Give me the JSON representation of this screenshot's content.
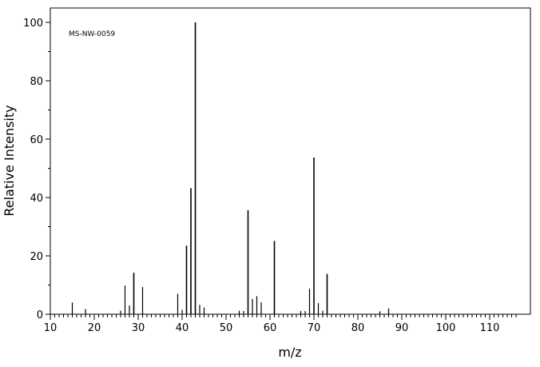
{
  "chart_data": {
    "type": "bar",
    "annotation": "MS-NW-0059",
    "xlabel": "m/z",
    "ylabel": "Relative Intensity",
    "xlim": [
      10,
      118
    ],
    "ylim": [
      0,
      100
    ],
    "x_ticks_major": [
      10,
      20,
      30,
      40,
      50,
      60,
      70,
      80,
      90,
      100,
      110
    ],
    "y_ticks_major": [
      0,
      20,
      40,
      60,
      80,
      100
    ],
    "grid": false,
    "legend": "none",
    "peaks": [
      {
        "mz": 15,
        "intensity": 4
      },
      {
        "mz": 18,
        "intensity": 1.8
      },
      {
        "mz": 26,
        "intensity": 1.2
      },
      {
        "mz": 27,
        "intensity": 9.8
      },
      {
        "mz": 28,
        "intensity": 3
      },
      {
        "mz": 29,
        "intensity": 14.2
      },
      {
        "mz": 31,
        "intensity": 9.3
      },
      {
        "mz": 39,
        "intensity": 7
      },
      {
        "mz": 40,
        "intensity": 1.5
      },
      {
        "mz": 41,
        "intensity": 23.5
      },
      {
        "mz": 42,
        "intensity": 43.2
      },
      {
        "mz": 43,
        "intensity": 100
      },
      {
        "mz": 44,
        "intensity": 3.2
      },
      {
        "mz": 45,
        "intensity": 2.3
      },
      {
        "mz": 53,
        "intensity": 1.2
      },
      {
        "mz": 54,
        "intensity": 1.1
      },
      {
        "mz": 55,
        "intensity": 35.6
      },
      {
        "mz": 56,
        "intensity": 5.2
      },
      {
        "mz": 57,
        "intensity": 6.2
      },
      {
        "mz": 58,
        "intensity": 4.1
      },
      {
        "mz": 61,
        "intensity": 25.1
      },
      {
        "mz": 67,
        "intensity": 1.1
      },
      {
        "mz": 68,
        "intensity": 1.1
      },
      {
        "mz": 69,
        "intensity": 8.7
      },
      {
        "mz": 70,
        "intensity": 53.7
      },
      {
        "mz": 71,
        "intensity": 3.8
      },
      {
        "mz": 72,
        "intensity": 1.2
      },
      {
        "mz": 73,
        "intensity": 13.8
      },
      {
        "mz": 85,
        "intensity": 1
      },
      {
        "mz": 87,
        "intensity": 2
      }
    ]
  }
}
